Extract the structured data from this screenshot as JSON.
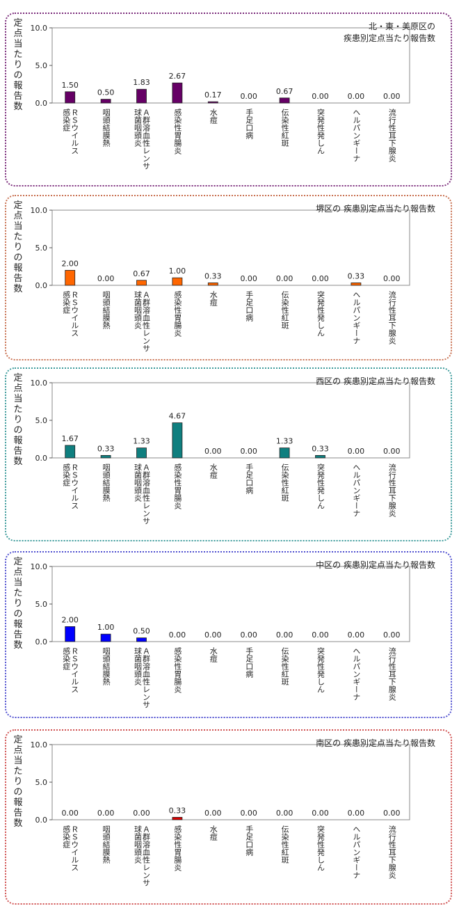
{
  "chart_data": [
    {
      "type": "bar",
      "title_lines": [
        "北・東・美原区の",
        "疾患別定点当たり報告数"
      ],
      "ylabel": "定点当たりの報告数",
      "ylim": [
        0,
        10
      ],
      "yticks": [
        "0.0",
        "5.0",
        "10.0"
      ],
      "color": "#660066",
      "border_color": "#7a2a7a",
      "categories": [
        [
          "ＲＳウイルス",
          "感染症"
        ],
        [
          "咽頭結膜熱"
        ],
        [
          "Ａ群溶血性レンサ",
          "球菌咽頭炎"
        ],
        [
          "感染性胃腸炎"
        ],
        [
          "水痘"
        ],
        [
          "手足口病"
        ],
        [
          "伝染性紅斑"
        ],
        [
          "突発性発しん"
        ],
        [
          "ヘルパンギーナ"
        ],
        [
          "流行性耳下腺炎"
        ]
      ],
      "values": [
        1.5,
        0.5,
        1.83,
        2.67,
        0.17,
        0.0,
        0.67,
        0.0,
        0.0,
        0.0
      ],
      "labels": [
        "1.50",
        "0.50",
        "1.83",
        "2.67",
        "0.17",
        "0.00",
        "0.67",
        "0.00",
        "0.00",
        "0.00"
      ]
    },
    {
      "type": "bar",
      "title_lines": [
        "堺区の 疾患別定点当たり報告数"
      ],
      "ylabel": "定点当たりの報告数",
      "ylim": [
        0,
        10
      ],
      "yticks": [
        "0.0",
        "5.0",
        "10.0"
      ],
      "color": "#ff6600",
      "border_color": "#c87050",
      "categories": [
        [
          "ＲＳウイルス",
          "感染症"
        ],
        [
          "咽頭結膜熱"
        ],
        [
          "Ａ群溶血性レンサ",
          "球菌咽頭炎"
        ],
        [
          "感染性胃腸炎"
        ],
        [
          "水痘"
        ],
        [
          "手足口病"
        ],
        [
          "伝染性紅斑"
        ],
        [
          "突発性発しん"
        ],
        [
          "ヘルパンギーナ"
        ],
        [
          "流行性耳下腺炎"
        ]
      ],
      "values": [
        2.0,
        0.0,
        0.67,
        1.0,
        0.33,
        0.0,
        0.0,
        0.0,
        0.33,
        0.0
      ],
      "labels": [
        "2.00",
        "0.00",
        "0.67",
        "1.00",
        "0.33",
        "0.00",
        "0.00",
        "0.00",
        "0.33",
        "0.00"
      ]
    },
    {
      "type": "bar",
      "title_lines": [
        "西区の 疾患別定点当たり報告数"
      ],
      "ylabel": "定点当たりの報告数",
      "ylim": [
        0,
        10
      ],
      "yticks": [
        "0.0",
        "5.0",
        "10.0"
      ],
      "color": "#0f7f7f",
      "border_color": "#3a9a9a",
      "categories": [
        [
          "ＲＳウイルス",
          "感染症"
        ],
        [
          "咽頭結膜熱"
        ],
        [
          "Ａ群溶血性レンサ",
          "球菌咽頭炎"
        ],
        [
          "感染性胃腸炎"
        ],
        [
          "水痘"
        ],
        [
          "手足口病"
        ],
        [
          "伝染性紅斑"
        ],
        [
          "突発性発しん"
        ],
        [
          "ヘルパンギーナ"
        ],
        [
          "流行性耳下腺炎"
        ]
      ],
      "values": [
        1.67,
        0.33,
        1.33,
        4.67,
        0.0,
        0.0,
        1.33,
        0.33,
        0.0,
        0.0
      ],
      "labels": [
        "1.67",
        "0.33",
        "1.33",
        "4.67",
        "0.00",
        "0.00",
        "1.33",
        "0.33",
        "0.00",
        "0.00"
      ]
    },
    {
      "type": "bar",
      "title_lines": [
        "中区の 疾患別定点当たり報告数"
      ],
      "ylabel": "定点当たりの報告数",
      "ylim": [
        0,
        10
      ],
      "yticks": [
        "0.0",
        "5.0",
        "10.0"
      ],
      "color": "#0000ff",
      "border_color": "#5050d0",
      "categories": [
        [
          "ＲＳウイルス",
          "感染症"
        ],
        [
          "咽頭結膜熱"
        ],
        [
          "Ａ群溶血性レンサ",
          "球菌咽頭炎"
        ],
        [
          "感染性胃腸炎"
        ],
        [
          "水痘"
        ],
        [
          "手足口病"
        ],
        [
          "伝染性紅斑"
        ],
        [
          "突発性発しん"
        ],
        [
          "ヘルパンギーナ"
        ],
        [
          "流行性耳下腺炎"
        ]
      ],
      "values": [
        2.0,
        1.0,
        0.5,
        0.0,
        0.0,
        0.0,
        0.0,
        0.0,
        0.0,
        0.0
      ],
      "labels": [
        "2.00",
        "1.00",
        "0.50",
        "0.00",
        "0.00",
        "0.00",
        "0.00",
        "0.00",
        "0.00",
        "0.00"
      ]
    },
    {
      "type": "bar",
      "title_lines": [
        "南区の 疾患別定点当たり報告数"
      ],
      "ylabel": "定点当たりの報告数",
      "ylim": [
        0,
        10
      ],
      "yticks": [
        "0.0",
        "5.0",
        "10.0"
      ],
      "color": "#e00000",
      "border_color": "#d05050",
      "categories": [
        [
          "ＲＳウイルス",
          "感染症"
        ],
        [
          "咽頭結膜熱"
        ],
        [
          "Ａ群溶血性レンサ",
          "球菌咽頭炎"
        ],
        [
          "感染性胃腸炎"
        ],
        [
          "水痘"
        ],
        [
          "手足口病"
        ],
        [
          "伝染性紅斑"
        ],
        [
          "突発性発しん"
        ],
        [
          "ヘルパンギーナ"
        ],
        [
          "流行性耳下腺炎"
        ]
      ],
      "values": [
        0.0,
        0.0,
        0.0,
        0.33,
        0.0,
        0.0,
        0.0,
        0.0,
        0.0,
        0.0
      ],
      "labels": [
        "0.00",
        "0.00",
        "0.00",
        "0.33",
        "0.00",
        "0.00",
        "0.00",
        "0.00",
        "0.00",
        "0.00"
      ]
    }
  ]
}
